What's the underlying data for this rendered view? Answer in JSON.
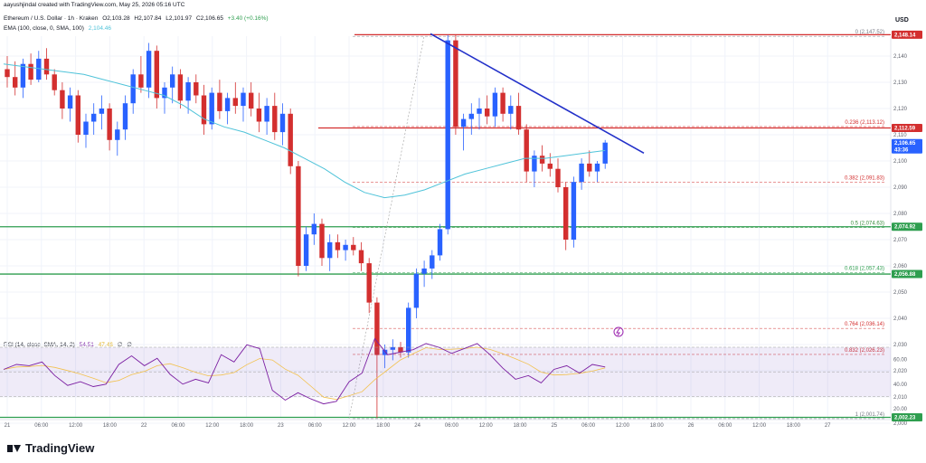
{
  "header": {
    "credit": "aayushjindal created with TradingView.com, May 25, 2026 05:16 UTC",
    "symbol_line": [
      "Ethereum / U.S. Dollar · 1h · Kraken",
      "O2,103.28",
      "H2,107.84",
      "L2,101.97",
      "C2,106.65",
      "+3.40 (+0.16%)"
    ],
    "ema_line": [
      "EMA (100, close, 0, SMA, 100)",
      "2,104.46"
    ],
    "rsi_line": [
      "RSI (14, close, SMA, 14, 2)",
      "54.51",
      "47.46",
      "∅",
      "∅"
    ]
  },
  "currency": "USD",
  "brand": "TradingView",
  "colors": {
    "up": "#2962ff",
    "down": "#d32f2f",
    "ema": "#4fc3d9",
    "trend": "#2230c9",
    "support": "#2e9e4f",
    "resistance": "#d32f2f",
    "rsi": "#7b1fa2",
    "rsi_ma": "#f2c14e"
  },
  "chart_data": {
    "type": "candlestick",
    "timeframe": "1h",
    "y_ticks": [
      2140,
      2130,
      2120,
      2110,
      2100,
      2090,
      2080,
      2070,
      2060,
      2050,
      2040,
      2030,
      2020,
      2010,
      2000
    ],
    "x_ticks": [
      "21",
      "06:00",
      "12:00",
      "18:00",
      "22",
      "06:00",
      "12:00",
      "18:00",
      "23",
      "06:00",
      "12:00",
      "18:00",
      "24",
      "06:00",
      "12:00",
      "18:00",
      "25",
      "06:00",
      "12:00",
      "18:00",
      "26",
      "06:00",
      "12:00",
      "18:00",
      "27"
    ],
    "fib_levels": [
      {
        "ratio": "0",
        "price": "2,147.52"
      },
      {
        "ratio": "0.236",
        "price": "2,113.12"
      },
      {
        "ratio": "0.382",
        "price": "2,091.83"
      },
      {
        "ratio": "0.5",
        "price": "2,074.63"
      },
      {
        "ratio": "0.618",
        "price": "2,057.43"
      },
      {
        "ratio": "0.764",
        "price": "2,036.14"
      },
      {
        "ratio": "0.832",
        "price": "2,026.23"
      },
      {
        "ratio": "1",
        "price": "2,001.74"
      }
    ],
    "price_tags": [
      {
        "price": "2,148.14",
        "value": 2148.14,
        "kind": "resistance"
      },
      {
        "price": "2,112.59",
        "value": 2112.59,
        "kind": "resistance"
      },
      {
        "price": "2,106.65",
        "value": 2106.65,
        "kind": "current"
      },
      {
        "price": "2,074.92",
        "value": 2074.92,
        "kind": "support"
      },
      {
        "price": "2,056.88",
        "value": 2056.88,
        "kind": "support"
      },
      {
        "price": "2,002.23",
        "value": 2002.23,
        "kind": "support"
      }
    ],
    "countdown": "43:36",
    "rsi_ticks": [
      60,
      40,
      20
    ],
    "candles": [
      [
        2135,
        2140,
        2128,
        2132
      ],
      [
        2132,
        2138,
        2125,
        2128
      ],
      [
        2128,
        2139,
        2124,
        2137
      ],
      [
        2137,
        2141,
        2129,
        2131
      ],
      [
        2131,
        2142,
        2130,
        2139
      ],
      [
        2139,
        2143,
        2131,
        2133
      ],
      [
        2133,
        2135,
        2125,
        2127
      ],
      [
        2127,
        2130,
        2116,
        2120
      ],
      [
        2120,
        2128,
        2115,
        2125
      ],
      [
        2125,
        2127,
        2107,
        2110
      ],
      [
        2110,
        2118,
        2105,
        2115
      ],
      [
        2115,
        2122,
        2110,
        2118
      ],
      [
        2118,
        2125,
        2112,
        2120
      ],
      [
        2120,
        2122,
        2104,
        2108
      ],
      [
        2108,
        2115,
        2102,
        2112
      ],
      [
        2112,
        2125,
        2108,
        2122
      ],
      [
        2122,
        2135,
        2118,
        2133
      ],
      [
        2133,
        2140,
        2126,
        2128
      ],
      [
        2128,
        2145,
        2124,
        2142
      ],
      [
        2142,
        2144,
        2120,
        2124
      ],
      [
        2124,
        2130,
        2118,
        2128
      ],
      [
        2128,
        2136,
        2122,
        2133
      ],
      [
        2133,
        2135,
        2120,
        2123
      ],
      [
        2123,
        2132,
        2118,
        2130
      ],
      [
        2130,
        2133,
        2122,
        2125
      ],
      [
        2125,
        2129,
        2110,
        2114
      ],
      [
        2114,
        2128,
        2112,
        2126
      ],
      [
        2126,
        2131,
        2116,
        2119
      ],
      [
        2119,
        2126,
        2114,
        2124
      ],
      [
        2124,
        2130,
        2118,
        2121
      ],
      [
        2121,
        2128,
        2115,
        2126
      ],
      [
        2126,
        2130,
        2117,
        2120
      ],
      [
        2120,
        2126,
        2111,
        2115
      ],
      [
        2115,
        2124,
        2110,
        2121
      ],
      [
        2121,
        2126,
        2108,
        2111
      ],
      [
        2111,
        2122,
        2106,
        2118
      ],
      [
        2118,
        2120,
        2095,
        2098
      ],
      [
        2098,
        2100,
        2056,
        2060
      ],
      [
        2060,
        2075,
        2058,
        2072
      ],
      [
        2072,
        2080,
        2068,
        2076
      ],
      [
        2076,
        2078,
        2060,
        2063
      ],
      [
        2063,
        2072,
        2058,
        2069
      ],
      [
        2069,
        2072,
        2063,
        2066
      ],
      [
        2066,
        2070,
        2062,
        2068
      ],
      [
        2068,
        2071,
        2064,
        2066
      ],
      [
        2066,
        2069,
        2058,
        2061
      ],
      [
        2061,
        2063,
        2042,
        2046
      ],
      [
        2046,
        2048,
        2002,
        2026
      ],
      [
        2026,
        2030,
        2021,
        2028
      ],
      [
        2028,
        2032,
        2024,
        2029
      ],
      [
        2029,
        2031,
        2025,
        2027
      ],
      [
        2027,
        2046,
        2025,
        2044
      ],
      [
        2044,
        2059,
        2040,
        2057
      ],
      [
        2057,
        2062,
        2052,
        2059
      ],
      [
        2059,
        2066,
        2055,
        2064
      ],
      [
        2064,
        2076,
        2062,
        2074
      ],
      [
        2074,
        2148,
        2072,
        2146
      ],
      [
        2146,
        2148,
        2110,
        2113
      ],
      [
        2113,
        2118,
        2104,
        2116
      ],
      [
        2116,
        2122,
        2110,
        2118
      ],
      [
        2118,
        2124,
        2112,
        2120
      ],
      [
        2120,
        2125,
        2114,
        2117
      ],
      [
        2117,
        2128,
        2113,
        2126
      ],
      [
        2126,
        2128,
        2115,
        2118
      ],
      [
        2118,
        2125,
        2112,
        2121
      ],
      [
        2121,
        2126,
        2110,
        2112
      ],
      [
        2112,
        2114,
        2092,
        2096
      ],
      [
        2096,
        2104,
        2090,
        2102
      ],
      [
        2102,
        2106,
        2096,
        2099
      ],
      [
        2099,
        2103,
        2094,
        2097
      ],
      [
        2097,
        2101,
        2088,
        2090
      ],
      [
        2090,
        2092,
        2066,
        2070
      ],
      [
        2070,
        2094,
        2067,
        2092
      ],
      [
        2092,
        2101,
        2089,
        2099
      ],
      [
        2099,
        2104,
        2094,
        2096
      ],
      [
        2096,
        2100,
        2092,
        2099
      ],
      [
        2099,
        2108,
        2097,
        2107
      ]
    ],
    "ema": [
      2137,
      2136,
      2135,
      2134,
      2133,
      2131,
      2129,
      2127,
      2125,
      2121,
      2116,
      2113,
      2111,
      2108,
      2105,
      2101,
      2097,
      2092,
      2088,
      2086,
      2087,
      2089,
      2092,
      2095,
      2097,
      2099,
      2101,
      2101,
      2102,
      2103,
      2104
    ],
    "rsi": [
      52,
      56,
      55,
      58,
      47,
      39,
      42,
      38,
      40,
      56,
      63,
      55,
      61,
      48,
      40,
      44,
      41,
      64,
      58,
      72,
      69,
      35,
      27,
      33,
      28,
      24,
      26,
      42,
      49,
      77,
      64,
      66,
      68,
      73,
      70,
      65,
      69,
      73,
      64,
      53,
      44,
      47,
      41,
      52,
      55,
      49,
      56,
      54
    ]
  }
}
